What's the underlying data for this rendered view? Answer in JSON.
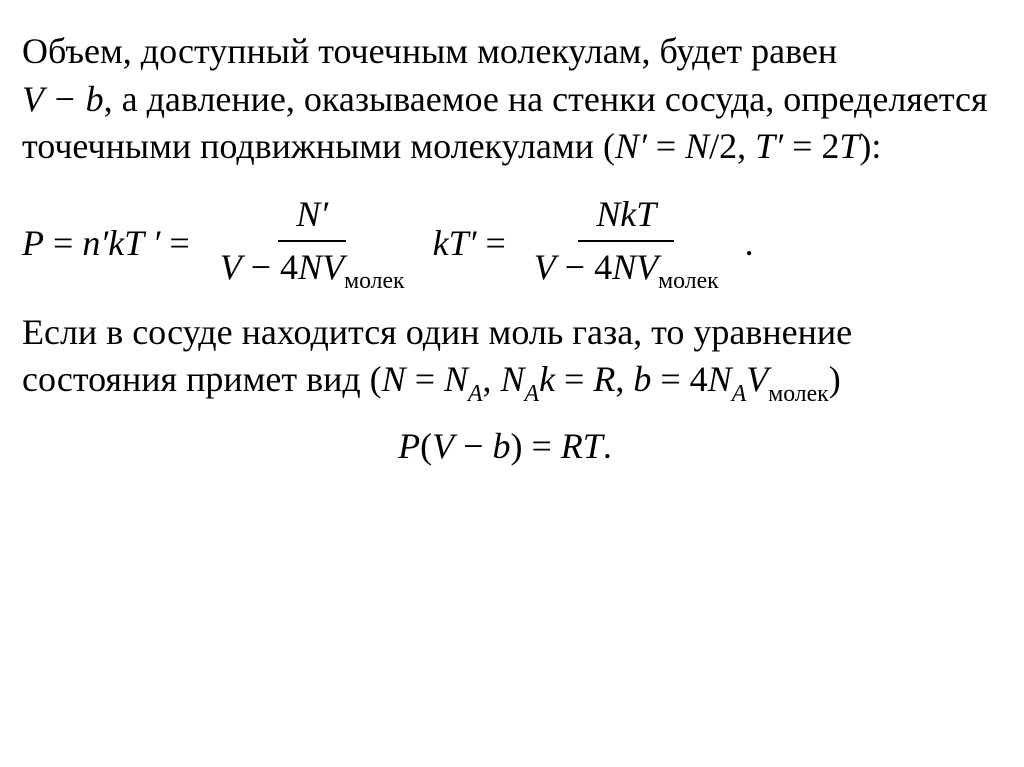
{
  "para1": {
    "t1": "Объем, доступный точечным молекулам, будет равен",
    "inline1_left": "V",
    "inline1_minus": " − ",
    "inline1_right": "b",
    "t2": ", а давление, оказываемое на стенки сосуда, определяется точечными подвижными молекулами (",
    "n_prime": "N′",
    "eq": " = ",
    "n": "N",
    "over2": "/2, ",
    "t_prime": "T′",
    "eq2": " = 2",
    "t_sym": "T",
    "close": "):"
  },
  "equation": {
    "lhs_P": "P",
    "eq1": " = ",
    "nprime": "n′",
    "k": "k",
    "Tp": "T ′",
    "eq2": " = ",
    "frac1_num": "N′",
    "frac1_den_pre": "V",
    "frac1_den_minus": " − 4",
    "frac1_den_N": "N",
    "frac1_den_V": "V",
    "sub_molek": "молек",
    "mid_k": "k",
    "mid_Tp": "T′",
    "eq3": " = ",
    "frac2_num_N": "N",
    "frac2_num_k": "k",
    "frac2_num_T": "T",
    "period": "."
  },
  "para2": {
    "t1": "Если в сосуде находится один моль газа, то уравнение состояния примет вид (",
    "N": "N",
    "eq": " = ",
    "NA": "N",
    "subA": "A",
    "comma": ", ",
    "NAk_N": "N",
    "NAk_sub": "A",
    "NAk_k": "k",
    "eqR_pre": "= ",
    "R": "R",
    "comma2": ", ",
    "b": "b",
    "eq4": " = 4",
    "NA2": "N",
    "subA2": "A",
    "Vm": "V",
    "sub_molek": "молек",
    "close": ")"
  },
  "final": {
    "P": "P",
    "open": "(",
    "V": "V",
    "minus": " − ",
    "b": "b",
    "close": ")",
    "eq": " = ",
    "RT_R": "R",
    "RT_T": "T",
    "period": "."
  }
}
